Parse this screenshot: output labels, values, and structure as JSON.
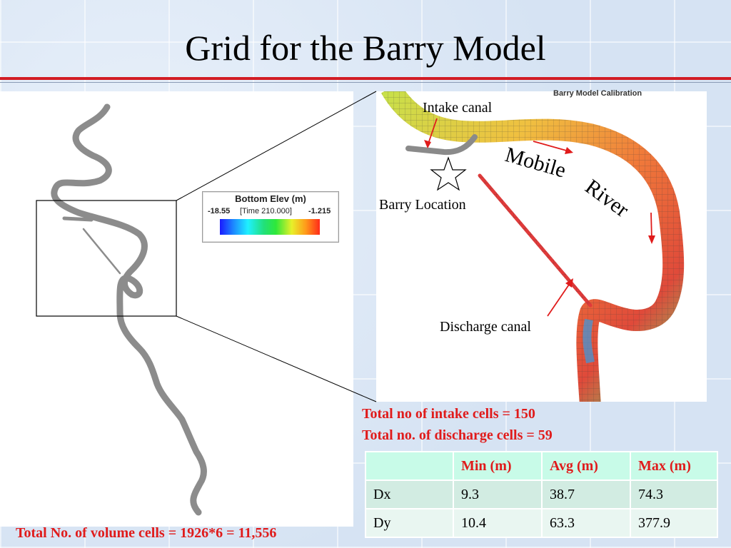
{
  "title": "Grid for the Barry Model",
  "legend": {
    "title": "Bottom Elev (m)",
    "min": "-18.55",
    "time": "[Time 210.000]",
    "max": "-1.215"
  },
  "inset": {
    "calibration_title": "Barry Model Calibration",
    "labels": {
      "intake": "Intake canal",
      "barry": "Barry Location",
      "discharge": "Discharge canal",
      "mobile": "Mobile",
      "river": "River"
    }
  },
  "stats": {
    "intake": "Total no of intake cells = 150",
    "discharge": "Total no. of discharge cells = 59"
  },
  "total_volume": "Total No. of volume cells = 1926*6 = 11,556",
  "table": {
    "headers": [
      "",
      "Min (m)",
      "Avg (m)",
      "Max (m)"
    ],
    "rows": [
      [
        "Dx",
        "9.3",
        "38.7",
        "74.3"
      ],
      [
        "Dy",
        "10.4",
        "63.3",
        "377.9"
      ]
    ]
  },
  "colors": {
    "title_rule": "#d21c24",
    "annotation_red": "#e01b1b",
    "river_grid_gray": "#8c8c8c"
  }
}
